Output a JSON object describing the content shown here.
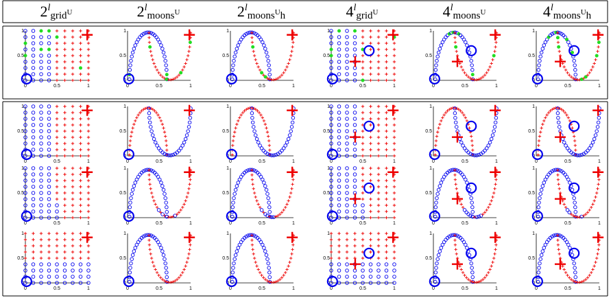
{
  "columns": [
    {
      "base": "2",
      "sup": "l",
      "name": "grid",
      "supU": "U",
      "suffix": ""
    },
    {
      "base": "2",
      "sup": "l",
      "name": "moons",
      "supU": "U",
      "suffix": ""
    },
    {
      "base": "2",
      "sup": "l",
      "name": "moons",
      "supU": "U",
      "suffix": "h"
    },
    {
      "base": "4",
      "sup": "l",
      "name": "grid",
      "supU": "U",
      "suffix": ""
    },
    {
      "base": "4",
      "sup": "l",
      "name": "moons",
      "supU": "U",
      "suffix": ""
    },
    {
      "base": "4",
      "sup": "l",
      "name": "moons",
      "supU": "U",
      "suffix": "h"
    }
  ],
  "axis": {
    "x_ticks": [
      "0",
      "0.5",
      "1"
    ],
    "y_ticks": [
      "0",
      "0.5",
      "1"
    ]
  },
  "colors": {
    "class_a": "#0000ee",
    "class_b": "#ee0000",
    "highlight": "#22dd22"
  },
  "rows": [
    {
      "group": "top",
      "variant": 0
    },
    {
      "group": "bottom",
      "variant": 1
    },
    {
      "group": "bottom",
      "variant": 2
    },
    {
      "group": "bottom",
      "variant": 3
    }
  ]
}
